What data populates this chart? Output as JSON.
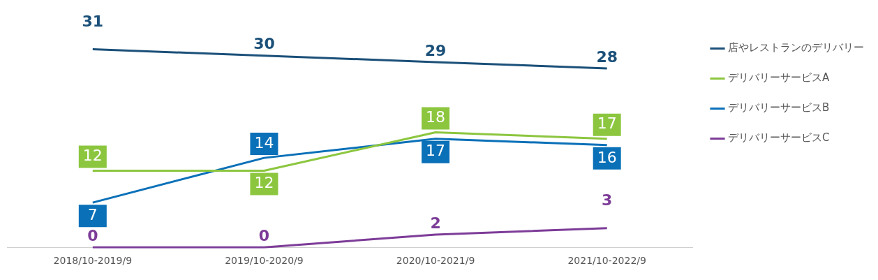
{
  "chart_data": {
    "type": "line",
    "categories": [
      "2018/10-2019/9",
      "2019/10-2020/9",
      "2020/10-2021/9",
      "2021/10-2022/9"
    ],
    "series": [
      {
        "name": "店やレストランのデリバリー",
        "color": "#1b5079",
        "values": [
          31,
          30,
          29,
          28
        ]
      },
      {
        "name": "デリバリーサービスA",
        "color": "#8cc63f",
        "values": [
          12,
          12,
          18,
          17
        ]
      },
      {
        "name": "デリバリーサービスB",
        "color": "#0a70b8",
        "values": [
          7,
          14,
          17,
          16
        ]
      },
      {
        "name": "デリバリーサービスC",
        "color": "#7d3c98",
        "values": [
          0,
          0,
          2,
          3
        ]
      }
    ],
    "data_labels": true,
    "legend": "right",
    "grid": false,
    "marker": "none",
    "line_style": "solid"
  }
}
